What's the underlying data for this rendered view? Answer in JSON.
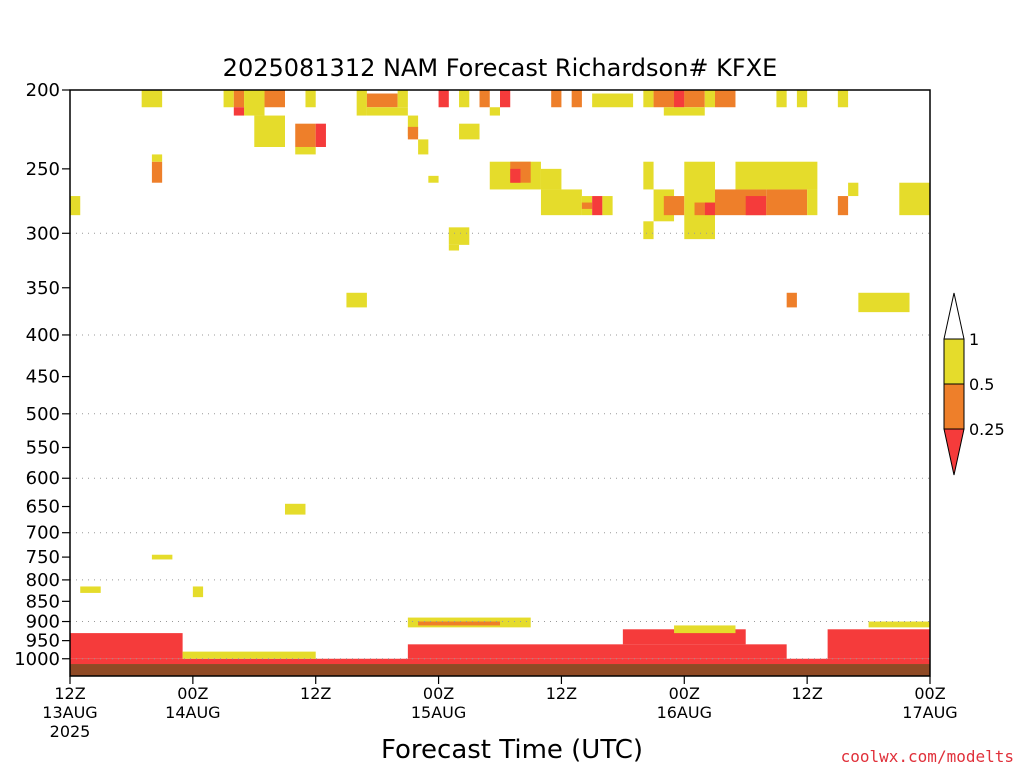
{
  "chart_data": {
    "type": "heatmap",
    "title": "2025081312 NAM Forecast Richardson# KFXE",
    "xlabel": "Forecast Time (UTC)",
    "credit": "coolwx.com/modelts",
    "x_unit": "hours since 2025-08-13 12Z",
    "xlim": [
      0,
      84
    ],
    "x_ticks": [
      {
        "x": 0,
        "l1": "12Z",
        "l2": "13AUG",
        "l3": "2025"
      },
      {
        "x": 12,
        "l1": "00Z",
        "l2": "14AUG",
        "l3": ""
      },
      {
        "x": 24,
        "l1": "12Z",
        "l2": "",
        "l3": ""
      },
      {
        "x": 36,
        "l1": "00Z",
        "l2": "15AUG",
        "l3": ""
      },
      {
        "x": 48,
        "l1": "12Z",
        "l2": "",
        "l3": ""
      },
      {
        "x": 60,
        "l1": "00Z",
        "l2": "16AUG",
        "l3": ""
      },
      {
        "x": 72,
        "l1": "12Z",
        "l2": "",
        "l3": ""
      },
      {
        "x": 84,
        "l1": "00Z",
        "l2": "17AUG",
        "l3": ""
      }
    ],
    "y_scale": "log pressure (hPa, inverted)",
    "ylim": [
      1050,
      200
    ],
    "y_ticks": [
      200,
      250,
      300,
      350,
      400,
      450,
      500,
      550,
      600,
      650,
      700,
      750,
      800,
      850,
      900,
      950,
      1000
    ],
    "y_gridlines": [
      300,
      400,
      500,
      600,
      700,
      800,
      900,
      1000
    ],
    "colorbar": {
      "labels": [
        "1",
        "0.5",
        "0.25"
      ],
      "bins": [
        {
          "range": "0.5–1",
          "color": "#e5dc2b"
        },
        {
          "range": "0.25–0.5",
          "color": "#ee7f2a"
        },
        {
          "range": "<0.25",
          "color": "#f53b3b"
        }
      ]
    },
    "ground_color": "#8f4a25",
    "cells": [
      {
        "x0": 7,
        "x1": 9,
        "p0": 200,
        "p1": 210,
        "c": "#e5dc2b"
      },
      {
        "x0": 15,
        "x1": 16,
        "p0": 200,
        "p1": 210,
        "c": "#e5dc2b"
      },
      {
        "x0": 16,
        "x1": 17,
        "p0": 200,
        "p1": 210,
        "c": "#ee7f2a"
      },
      {
        "x0": 17,
        "x1": 19,
        "p0": 200,
        "p1": 215,
        "c": "#e5dc2b"
      },
      {
        "x0": 19,
        "x1": 21,
        "p0": 200,
        "p1": 210,
        "c": "#ee7f2a"
      },
      {
        "x0": 16,
        "x1": 17,
        "p0": 210,
        "p1": 215,
        "c": "#f53b3b"
      },
      {
        "x0": 18,
        "x1": 21,
        "p0": 215,
        "p1": 235,
        "c": "#e5dc2b"
      },
      {
        "x0": 23,
        "x1": 24,
        "p0": 200,
        "p1": 210,
        "c": "#e5dc2b"
      },
      {
        "x0": 22,
        "x1": 24,
        "p0": 220,
        "p1": 235,
        "c": "#ee7f2a"
      },
      {
        "x0": 24,
        "x1": 25,
        "p0": 220,
        "p1": 235,
        "c": "#f53b3b"
      },
      {
        "x0": 22,
        "x1": 24,
        "p0": 235,
        "p1": 240,
        "c": "#e5dc2b"
      },
      {
        "x0": 28,
        "x1": 29,
        "p0": 200,
        "p1": 215,
        "c": "#e5dc2b"
      },
      {
        "x0": 29,
        "x1": 32,
        "p0": 202,
        "p1": 210,
        "c": "#ee7f2a"
      },
      {
        "x0": 32,
        "x1": 33,
        "p0": 200,
        "p1": 210,
        "c": "#e5dc2b"
      },
      {
        "x0": 29,
        "x1": 33,
        "p0": 210,
        "p1": 215,
        "c": "#e5dc2b"
      },
      {
        "x0": 33,
        "x1": 34,
        "p0": 215,
        "p1": 228,
        "c": "#e5dc2b"
      },
      {
        "x0": 33,
        "x1": 34,
        "p0": 222,
        "p1": 230,
        "c": "#ee7f2a"
      },
      {
        "x0": 34,
        "x1": 35,
        "p0": 230,
        "p1": 240,
        "c": "#e5dc2b"
      },
      {
        "x0": 36,
        "x1": 37,
        "p0": 200,
        "p1": 210,
        "c": "#f53b3b"
      },
      {
        "x0": 38,
        "x1": 39,
        "p0": 200,
        "p1": 210,
        "c": "#e5dc2b"
      },
      {
        "x0": 40,
        "x1": 41,
        "p0": 200,
        "p1": 210,
        "c": "#ee7f2a"
      },
      {
        "x0": 42,
        "x1": 43,
        "p0": 200,
        "p1": 210,
        "c": "#f53b3b"
      },
      {
        "x0": 41,
        "x1": 42,
        "p0": 210,
        "p1": 215,
        "c": "#e5dc2b"
      },
      {
        "x0": 38,
        "x1": 40,
        "p0": 220,
        "p1": 230,
        "c": "#e5dc2b"
      },
      {
        "x0": 35,
        "x1": 36,
        "p0": 255,
        "p1": 260,
        "c": "#e5dc2b"
      },
      {
        "x0": 41,
        "x1": 46,
        "p0": 245,
        "p1": 265,
        "c": "#e5dc2b"
      },
      {
        "x0": 43,
        "x1": 45,
        "p0": 245,
        "p1": 260,
        "c": "#ee7f2a"
      },
      {
        "x0": 43,
        "x1": 44,
        "p0": 250,
        "p1": 260,
        "c": "#f53b3b"
      },
      {
        "x0": 46,
        "x1": 48,
        "p0": 250,
        "p1": 265,
        "c": "#e5dc2b"
      },
      {
        "x0": 46,
        "x1": 50,
        "p0": 265,
        "p1": 285,
        "c": "#e5dc2b"
      },
      {
        "x0": 50,
        "x1": 51,
        "p0": 270,
        "p1": 285,
        "c": "#e5dc2b"
      },
      {
        "x0": 50,
        "x1": 51,
        "p0": 275,
        "p1": 280,
        "c": "#ee7f2a"
      },
      {
        "x0": 51,
        "x1": 52,
        "p0": 270,
        "p1": 285,
        "c": "#f53b3b"
      },
      {
        "x0": 52,
        "x1": 53,
        "p0": 270,
        "p1": 285,
        "c": "#e5dc2b"
      },
      {
        "x0": 47,
        "x1": 48,
        "p0": 200,
        "p1": 210,
        "c": "#ee7f2a"
      },
      {
        "x0": 49,
        "x1": 50,
        "p0": 200,
        "p1": 210,
        "c": "#ee7f2a"
      },
      {
        "x0": 51,
        "x1": 55,
        "p0": 202,
        "p1": 210,
        "c": "#e5dc2b"
      },
      {
        "x0": 56,
        "x1": 57,
        "p0": 200,
        "p1": 210,
        "c": "#e5dc2b"
      },
      {
        "x0": 57,
        "x1": 60,
        "p0": 200,
        "p1": 210,
        "c": "#ee7f2a"
      },
      {
        "x0": 59,
        "x1": 60,
        "p0": 200,
        "p1": 210,
        "c": "#f53b3b"
      },
      {
        "x0": 60,
        "x1": 62,
        "p0": 200,
        "p1": 210,
        "c": "#ee7f2a"
      },
      {
        "x0": 62,
        "x1": 63,
        "p0": 200,
        "p1": 210,
        "c": "#e5dc2b"
      },
      {
        "x0": 63,
        "x1": 65,
        "p0": 200,
        "p1": 210,
        "c": "#ee7f2a"
      },
      {
        "x0": 58,
        "x1": 62,
        "p0": 210,
        "p1": 215,
        "c": "#e5dc2b"
      },
      {
        "x0": 56,
        "x1": 57,
        "p0": 245,
        "p1": 265,
        "c": "#e5dc2b"
      },
      {
        "x0": 57,
        "x1": 59,
        "p0": 265,
        "p1": 290,
        "c": "#e5dc2b"
      },
      {
        "x0": 58,
        "x1": 60,
        "p0": 270,
        "p1": 285,
        "c": "#ee7f2a"
      },
      {
        "x0": 60,
        "x1": 63,
        "p0": 245,
        "p1": 305,
        "c": "#e5dc2b"
      },
      {
        "x0": 61,
        "x1": 62,
        "p0": 275,
        "p1": 285,
        "c": "#ee7f2a"
      },
      {
        "x0": 62,
        "x1": 63,
        "p0": 275,
        "p1": 285,
        "c": "#f53b3b"
      },
      {
        "x0": 63,
        "x1": 68,
        "p0": 265,
        "p1": 285,
        "c": "#ee7f2a"
      },
      {
        "x0": 66,
        "x1": 68,
        "p0": 270,
        "p1": 285,
        "c": "#f53b3b"
      },
      {
        "x0": 68,
        "x1": 72,
        "p0": 265,
        "p1": 285,
        "c": "#ee7f2a"
      },
      {
        "x0": 65,
        "x1": 73,
        "p0": 245,
        "p1": 265,
        "c": "#e5dc2b"
      },
      {
        "x0": 72,
        "x1": 73,
        "p0": 265,
        "p1": 285,
        "c": "#e5dc2b"
      },
      {
        "x0": 75,
        "x1": 76,
        "p0": 270,
        "p1": 285,
        "c": "#ee7f2a"
      },
      {
        "x0": 76,
        "x1": 77,
        "p0": 260,
        "p1": 270,
        "c": "#e5dc2b"
      },
      {
        "x0": 81,
        "x1": 84,
        "p0": 260,
        "p1": 285,
        "c": "#e5dc2b"
      },
      {
        "x0": 69,
        "x1": 70,
        "p0": 200,
        "p1": 210,
        "c": "#e5dc2b"
      },
      {
        "x0": 71,
        "x1": 72,
        "p0": 200,
        "p1": 210,
        "c": "#e5dc2b"
      },
      {
        "x0": 75,
        "x1": 76,
        "p0": 200,
        "p1": 210,
        "c": "#e5dc2b"
      },
      {
        "x0": 56,
        "x1": 57,
        "p0": 290,
        "p1": 305,
        "c": "#e5dc2b"
      },
      {
        "x0": 37,
        "x1": 39,
        "p0": 295,
        "p1": 310,
        "c": "#e5dc2b"
      },
      {
        "x0": 37,
        "x1": 38,
        "p0": 310,
        "p1": 315,
        "c": "#e5dc2b"
      },
      {
        "x0": 0,
        "x1": 1,
        "p0": 270,
        "p1": 285,
        "c": "#e5dc2b"
      },
      {
        "x0": 8,
        "x1": 9,
        "p0": 245,
        "p1": 260,
        "c": "#ee7f2a"
      },
      {
        "x0": 8,
        "x1": 9,
        "p0": 240,
        "p1": 245,
        "c": "#e5dc2b"
      },
      {
        "x0": 27,
        "x1": 29,
        "p0": 355,
        "p1": 370,
        "c": "#e5dc2b"
      },
      {
        "x0": 70,
        "x1": 71,
        "p0": 355,
        "p1": 370,
        "c": "#ee7f2a"
      },
      {
        "x0": 77,
        "x1": 82,
        "p0": 355,
        "p1": 375,
        "c": "#e5dc2b"
      },
      {
        "x0": 21,
        "x1": 23,
        "p0": 645,
        "p1": 665,
        "c": "#e5dc2b"
      },
      {
        "x0": 8,
        "x1": 10,
        "p0": 745,
        "p1": 755,
        "c": "#e5dc2b"
      },
      {
        "x0": 1,
        "x1": 3,
        "p0": 815,
        "p1": 830,
        "c": "#e5dc2b"
      },
      {
        "x0": 12,
        "x1": 13,
        "p0": 815,
        "p1": 840,
        "c": "#e5dc2b"
      },
      {
        "x0": 0,
        "x1": 84,
        "p0": 1000,
        "p1": 1015,
        "c": "#f53b3b"
      },
      {
        "x0": 0,
        "x1": 11,
        "p0": 930,
        "p1": 1000,
        "c": "#f53b3b"
      },
      {
        "x0": 33,
        "x1": 45,
        "p0": 890,
        "p1": 915,
        "c": "#e5dc2b"
      },
      {
        "x0": 34,
        "x1": 42,
        "p0": 900,
        "p1": 910,
        "c": "#ee7f2a"
      },
      {
        "x0": 33,
        "x1": 70,
        "p0": 960,
        "p1": 1000,
        "c": "#f53b3b"
      },
      {
        "x0": 54,
        "x1": 66,
        "p0": 920,
        "p1": 960,
        "c": "#f53b3b"
      },
      {
        "x0": 59,
        "x1": 65,
        "p0": 910,
        "p1": 930,
        "c": "#e5dc2b"
      },
      {
        "x0": 74,
        "x1": 84,
        "p0": 920,
        "p1": 1000,
        "c": "#f53b3b"
      },
      {
        "x0": 78,
        "x1": 84,
        "p0": 900,
        "p1": 915,
        "c": "#e5dc2b"
      },
      {
        "x0": 11,
        "x1": 24,
        "p0": 980,
        "p1": 1000,
        "c": "#e5dc2b"
      }
    ]
  }
}
